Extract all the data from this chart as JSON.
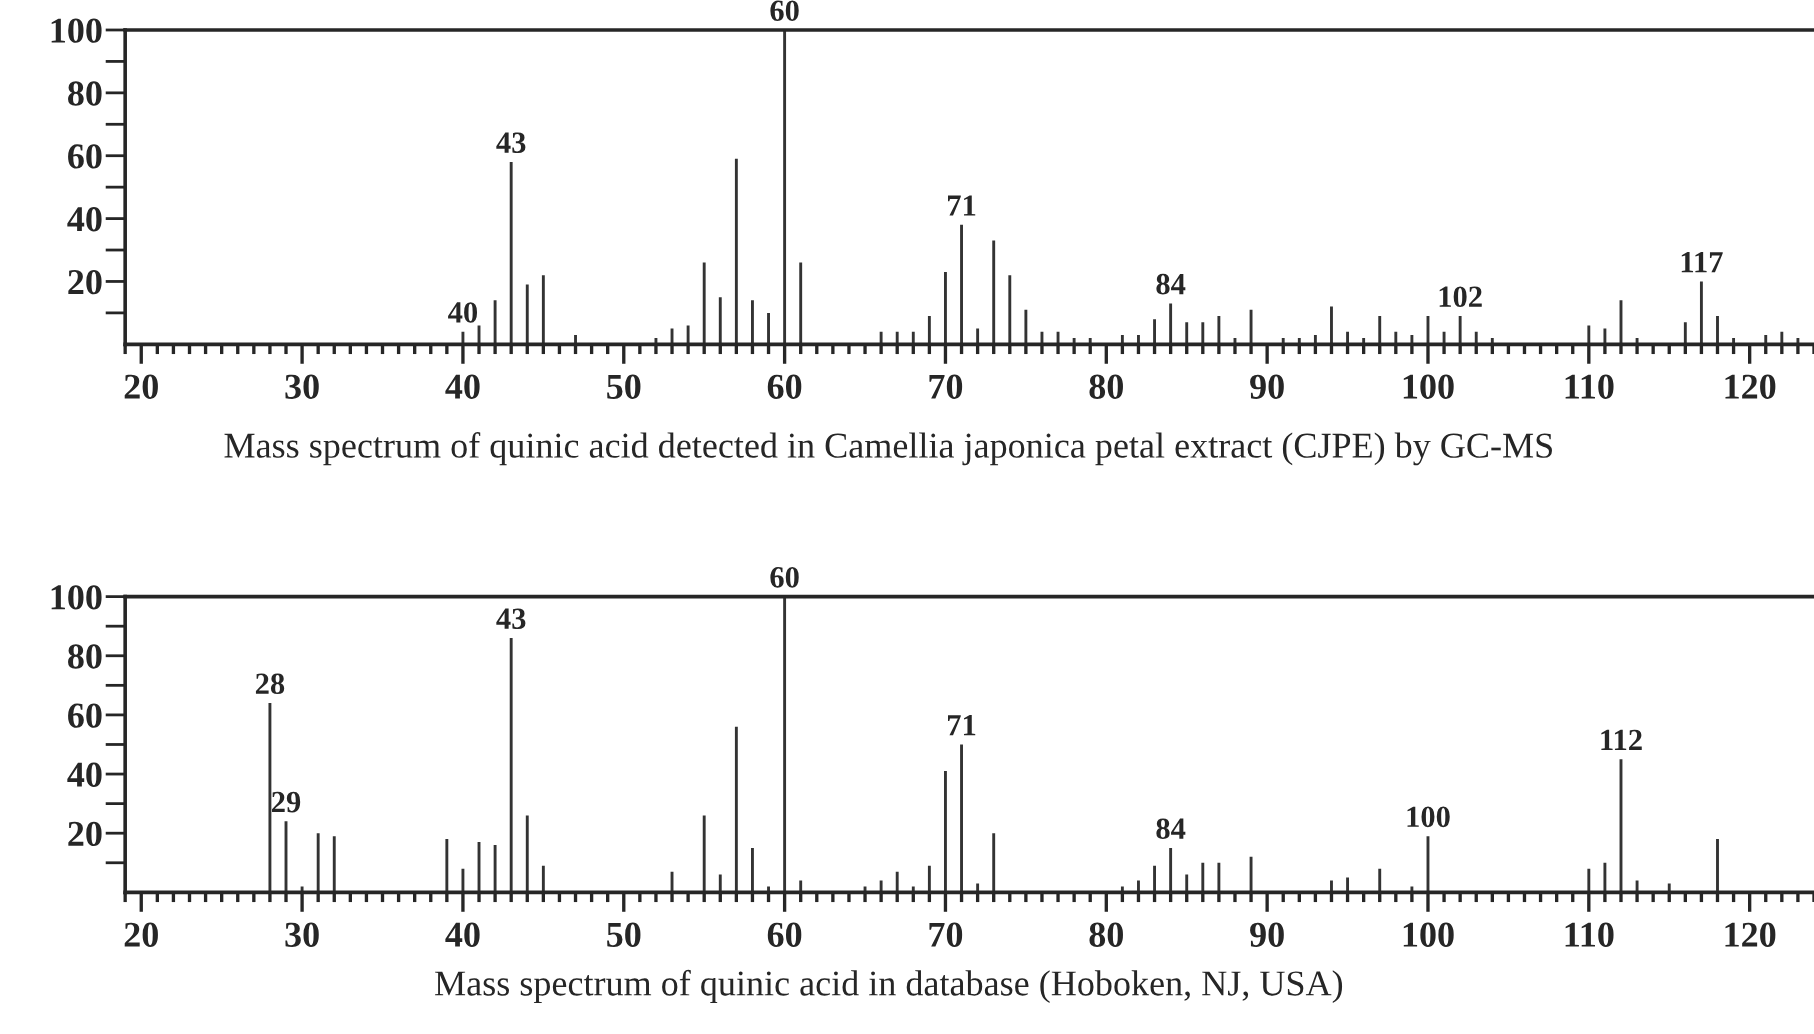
{
  "chart_data": [
    {
      "type": "bar",
      "x": [
        40,
        41,
        42,
        43,
        44,
        45,
        47,
        52,
        53,
        54,
        55,
        56,
        57,
        58,
        59,
        60,
        61,
        66,
        67,
        68,
        69,
        70,
        71,
        72,
        73,
        74,
        75,
        76,
        77,
        78,
        79,
        81,
        82,
        83,
        84,
        85,
        86,
        87,
        88,
        89,
        91,
        92,
        93,
        94,
        95,
        96,
        97,
        98,
        99,
        100,
        101,
        102,
        103,
        104,
        110,
        111,
        112,
        113,
        116,
        117,
        118,
        119,
        121,
        122,
        123
      ],
      "series": [
        {
          "color": "#333333",
          "values": [
            4,
            6,
            14,
            58,
            19,
            22,
            3,
            2,
            5,
            6,
            26,
            15,
            59,
            14,
            10,
            100,
            26,
            4,
            4,
            4,
            9,
            23,
            38,
            5,
            33,
            22,
            11,
            4,
            4,
            2,
            2,
            3,
            3,
            8,
            13,
            7,
            7,
            9,
            2,
            11,
            2,
            2,
            3,
            12,
            4,
            2,
            9,
            4,
            3,
            9,
            4,
            9,
            4,
            2,
            6,
            5,
            14,
            2,
            7,
            20,
            9,
            2,
            3,
            4,
            2
          ]
        }
      ],
      "xlim": [
        19,
        124
      ],
      "xticks": [
        20,
        30,
        40,
        50,
        60,
        70,
        80,
        90,
        100,
        110,
        120
      ],
      "ylim": [
        0,
        100
      ],
      "yticks": [
        {
          "value": 10,
          "label": null
        },
        20,
        {
          "value": 30,
          "label": null
        },
        40,
        {
          "value": 50,
          "label": null
        },
        60,
        {
          "value": 70,
          "label": null
        },
        80,
        {
          "value": 90,
          "label": null
        },
        100
      ],
      "annotations": [
        {
          "text": "40",
          "x": 40,
          "y": 4
        },
        {
          "text": "43",
          "x": 43,
          "y": 58
        },
        {
          "text": "60",
          "x": 60,
          "y": 100
        },
        {
          "text": "71",
          "x": 71,
          "y": 38
        },
        {
          "text": "84",
          "x": 84,
          "y": 13
        },
        {
          "text": "102",
          "x": 102,
          "y": 9
        },
        {
          "text": "117",
          "x": 117,
          "y": 20
        },
        "Mass spectrum of quinic acid detected in Camellia japonica petal extract (CJPE) by GC-MS"
      ]
    },
    {
      "type": "bar",
      "x": [
        28,
        29,
        30,
        31,
        32,
        39,
        40,
        41,
        42,
        43,
        44,
        45,
        53,
        55,
        56,
        57,
        58,
        59,
        60,
        61,
        65,
        66,
        67,
        68,
        69,
        70,
        71,
        72,
        73,
        81,
        82,
        83,
        84,
        85,
        86,
        87,
        89,
        94,
        95,
        97,
        99,
        100,
        110,
        111,
        112,
        113,
        115,
        118
      ],
      "series": [
        {
          "color": "#333333",
          "values": [
            64,
            24,
            2,
            20,
            19,
            18,
            8,
            17,
            16,
            86,
            26,
            9,
            7,
            26,
            6,
            56,
            15,
            2,
            100,
            4,
            2,
            4,
            7,
            2,
            9,
            41,
            50,
            3,
            20,
            2,
            4,
            9,
            15,
            6,
            10,
            10,
            12,
            4,
            5,
            8,
            2,
            19,
            8,
            10,
            45,
            4,
            3,
            18
          ]
        }
      ],
      "xlim": [
        19,
        124
      ],
      "xticks": [
        20,
        30,
        40,
        50,
        60,
        70,
        80,
        90,
        100,
        110,
        120
      ],
      "ylim": [
        0,
        100
      ],
      "yticks": [
        {
          "value": 10,
          "label": null
        },
        20,
        {
          "value": 30,
          "label": null
        },
        40,
        {
          "value": 50,
          "label": null
        },
        60,
        {
          "value": 70,
          "label": null
        },
        80,
        {
          "value": 90,
          "label": null
        },
        100
      ],
      "annotations": [
        {
          "text": "28",
          "x": 28,
          "y": 64
        },
        {
          "text": "29",
          "x": 29,
          "y": 24
        },
        {
          "text": "43",
          "x": 43,
          "y": 86
        },
        {
          "text": "60",
          "x": 60,
          "y": 100
        },
        {
          "text": "71",
          "x": 71,
          "y": 50
        },
        {
          "text": "84",
          "x": 84,
          "y": 15
        },
        {
          "text": "100",
          "x": 100,
          "y": 19
        },
        {
          "text": "112",
          "x": 112,
          "y": 45
        },
        "Mass spectrum of quinic acid in database (Hoboken, NJ, USA)"
      ]
    }
  ]
}
